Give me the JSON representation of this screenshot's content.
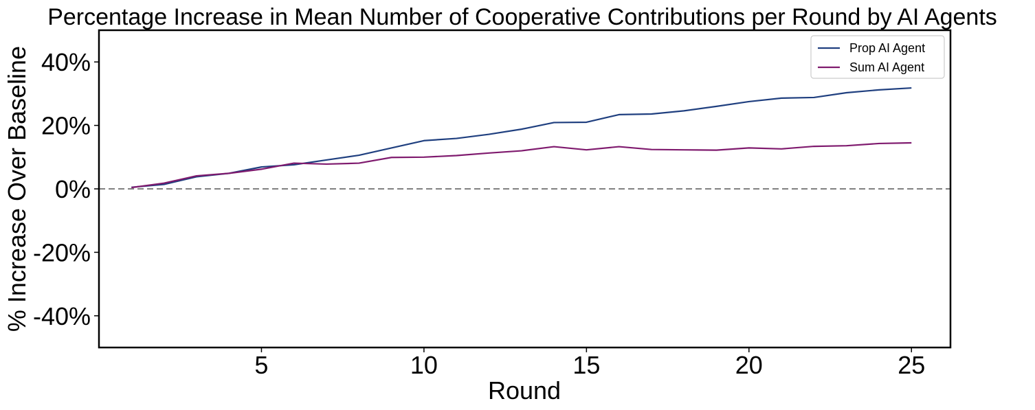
{
  "chart_data": {
    "type": "line",
    "title": "Percentage Increase in Mean Number of Cooperative Contributions per Round by AI Agents",
    "xlabel": "Round",
    "ylabel": "% Increase Over Baseline",
    "xlim": [
      0,
      26.2
    ],
    "ylim": [
      -50,
      50
    ],
    "x_ticks": [
      5,
      10,
      15,
      20,
      25
    ],
    "y_ticks": [
      -40,
      -20,
      0,
      20,
      40
    ],
    "y_tick_labels": [
      "-40%",
      "-20%",
      "0%",
      "20%",
      "40%"
    ],
    "baseline": 0,
    "grid": false,
    "legend_position": "top-right",
    "x": [
      1,
      2,
      3,
      4,
      5,
      6,
      7,
      8,
      9,
      10,
      11,
      12,
      13,
      14,
      15,
      16,
      17,
      18,
      19,
      20,
      21,
      22,
      23,
      24,
      25
    ],
    "series": [
      {
        "name": "Prop AI Agent",
        "color": "#1f3f7f",
        "values": [
          0.5,
          1.4,
          3.8,
          4.9,
          6.9,
          7.6,
          9.1,
          10.6,
          12.9,
          15.2,
          15.9,
          17.2,
          18.8,
          20.9,
          21.0,
          23.4,
          23.6,
          24.6,
          26.0,
          27.5,
          28.6,
          28.8,
          30.3,
          31.2,
          31.8
        ]
      },
      {
        "name": "Sum AI Agent",
        "color": "#7f1a6e",
        "values": [
          0.4,
          1.8,
          4.1,
          4.9,
          6.2,
          8.1,
          7.8,
          8.1,
          9.9,
          10.0,
          10.5,
          11.3,
          12.0,
          13.3,
          12.3,
          13.3,
          12.4,
          12.3,
          12.2,
          12.9,
          12.6,
          13.4,
          13.6,
          14.3,
          14.5
        ]
      }
    ]
  }
}
